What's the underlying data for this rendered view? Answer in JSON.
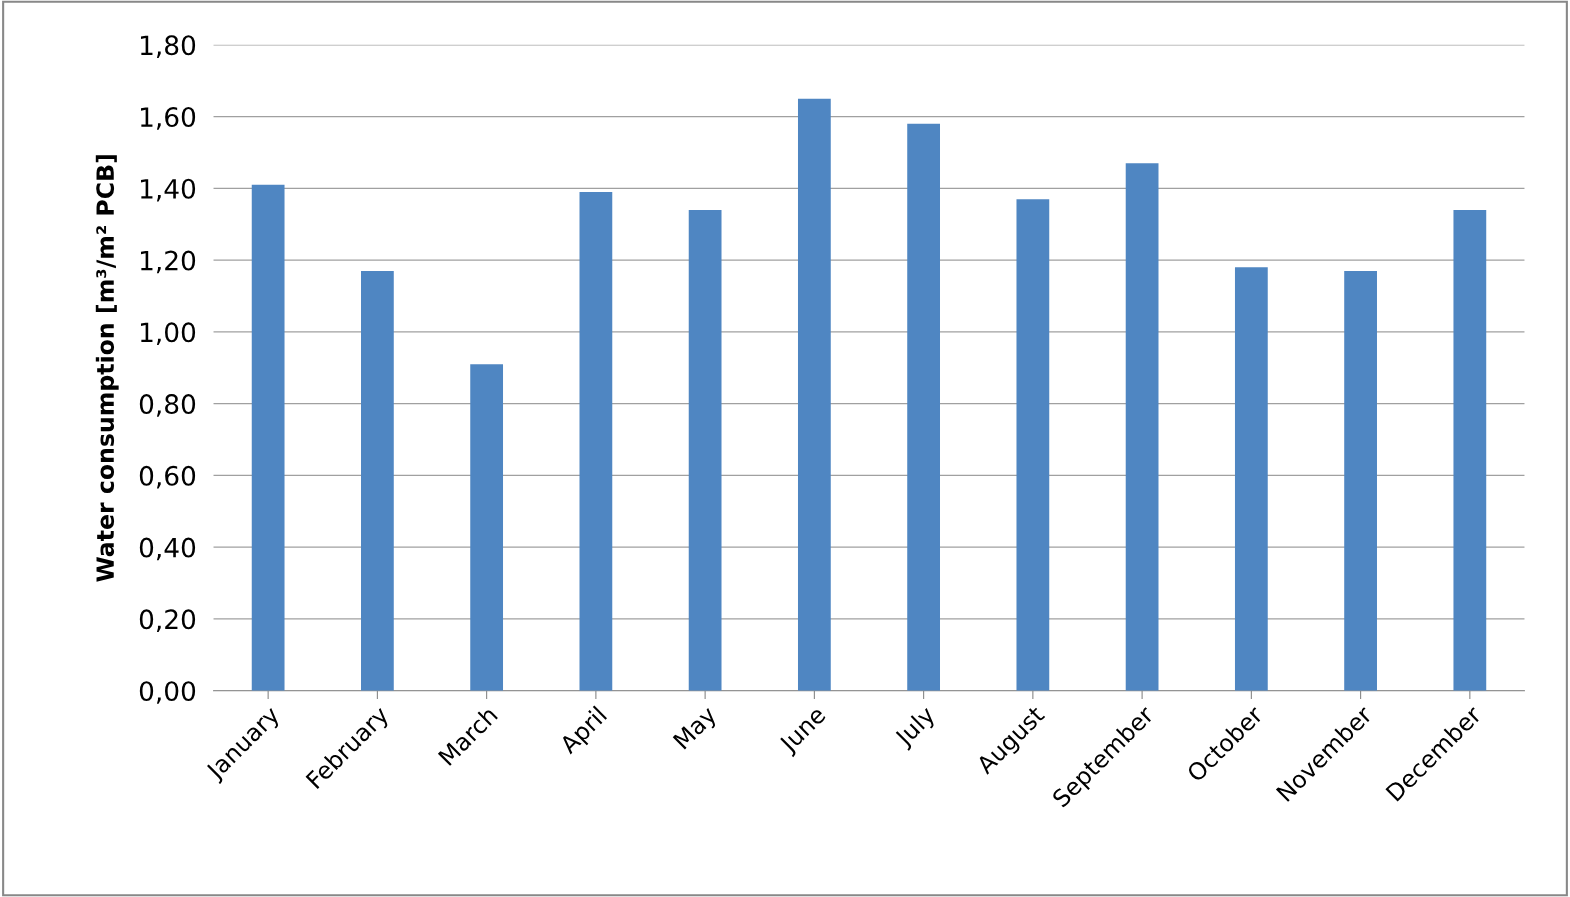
{
  "chart_data": {
    "type": "bar",
    "ylabel": "Water consumption [m³/m² PCB]",
    "categories": [
      "January",
      "February",
      "March",
      "April",
      "May",
      "June",
      "July",
      "August",
      "September",
      "October",
      "November",
      "December"
    ],
    "values": [
      1.41,
      1.17,
      0.91,
      1.39,
      1.34,
      1.65,
      1.58,
      1.37,
      1.47,
      1.18,
      1.17,
      1.34
    ],
    "color": "#4f86c2",
    "ylim": [
      0,
      1.8
    ],
    "yticks": [
      {
        "value": 0,
        "label": "0,00"
      },
      {
        "value": 0.2,
        "label": "0,20"
      },
      {
        "value": 0.4,
        "label": "0,40"
      },
      {
        "value": 0.6,
        "label": "0,60"
      },
      {
        "value": 0.8,
        "label": "0,80"
      },
      {
        "value": 1.0,
        "label": "1,00"
      },
      {
        "value": 1.2,
        "label": "1,20"
      },
      {
        "value": 1.4,
        "label": "1,40"
      },
      {
        "value": 1.6,
        "label": "1,60"
      },
      {
        "value": 1.8,
        "label": "1,80"
      }
    ],
    "grid": "y"
  }
}
